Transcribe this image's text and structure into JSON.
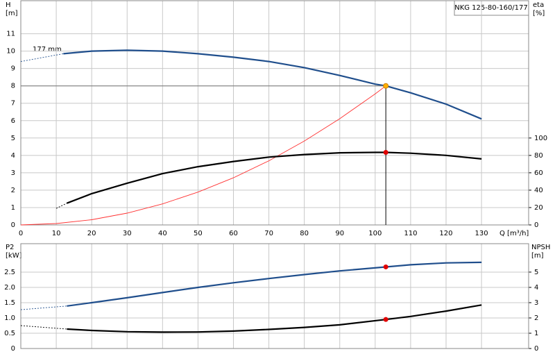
{
  "chart_data": [
    {
      "type": "line",
      "model": "NKG 125-80-160/177",
      "annotation": "177 mm",
      "ylabel": "H",
      "yunit": "[m]",
      "y2label": "eta",
      "y2unit": "[%]",
      "xlabel": "Q [m³/h]",
      "xlim": [
        0,
        143.3
      ],
      "xticks": [
        0,
        10,
        20,
        30,
        40,
        50,
        60,
        70,
        80,
        90,
        100,
        110,
        120,
        130
      ],
      "ylim": [
        0,
        12.9
      ],
      "yticks": [
        0,
        1,
        2,
        3,
        4,
        5,
        6,
        7,
        8,
        9,
        10,
        11
      ],
      "y2lim": [
        0,
        258
      ],
      "y2ticks": [
        0,
        20,
        40,
        60,
        80,
        100
      ],
      "grid": true,
      "series": [
        {
          "style": "dashed",
          "color": "#1f4e8c",
          "x": [
            0,
            12
          ],
          "values": [
            9.4,
            9.85
          ]
        },
        {
          "style": "solid",
          "color": "#1f4e8c",
          "x": [
            12,
            20,
            30,
            40,
            50,
            60,
            70,
            80,
            90,
            100,
            103,
            110,
            120,
            130
          ],
          "values": [
            9.85,
            10.0,
            10.05,
            10.0,
            9.85,
            9.65,
            9.4,
            9.05,
            8.6,
            8.1,
            8.0,
            7.6,
            6.95,
            6.1
          ]
        },
        {
          "style": "thin",
          "color": "#ff3030",
          "x": [
            0,
            10,
            20,
            30,
            40,
            50,
            60,
            70,
            80,
            90,
            100,
            103
          ],
          "values": [
            0,
            0.08,
            0.3,
            0.68,
            1.21,
            1.89,
            2.71,
            3.69,
            4.83,
            6.11,
            7.54,
            8.0
          ]
        },
        {
          "style": "dashed",
          "color": "#000000",
          "axis": "y2",
          "x": [
            10,
            13
          ],
          "values": [
            19,
            25
          ]
        },
        {
          "style": "solid",
          "color": "#000000",
          "axis": "y2",
          "x": [
            13,
            20,
            30,
            40,
            50,
            60,
            70,
            80,
            90,
            100,
            103,
            110,
            120,
            130
          ],
          "values": [
            25,
            36,
            48,
            59,
            67,
            73,
            78,
            81,
            83,
            83.5,
            83.5,
            82.5,
            80,
            76
          ]
        },
        {
          "style": "marker",
          "guides": true,
          "color": "#ffb000",
          "x": [
            103
          ],
          "values": [
            8.0
          ]
        },
        {
          "style": "marker",
          "color": "#e00000",
          "axis": "y2",
          "x": [
            103
          ],
          "values": [
            83.5
          ]
        }
      ]
    },
    {
      "type": "line",
      "ylabel": "P2",
      "yunit": "[kW]",
      "y2label": "NPSH",
      "y2unit": "[m]",
      "xlim": [
        0,
        143.3
      ],
      "ylim": [
        0,
        3.43
      ],
      "yticks": [
        0,
        0.5,
        {
          "value": 1,
          "label": "1.0"
        },
        1.5,
        {
          "value": 2,
          "label": "2.0"
        },
        2.5
      ],
      "y2lim": [
        0,
        6.86
      ],
      "y2ticks": [
        0,
        1,
        2,
        3,
        4,
        5
      ],
      "grid": true,
      "series": [
        {
          "style": "dashed",
          "color": "#1f4e8c",
          "x": [
            0,
            13
          ],
          "values": [
            1.27,
            1.39
          ]
        },
        {
          "style": "solid",
          "color": "#1f4e8c",
          "x": [
            13,
            20,
            30,
            40,
            50,
            60,
            70,
            80,
            90,
            103,
            110,
            120,
            130
          ],
          "values": [
            1.39,
            1.5,
            1.66,
            1.83,
            2.0,
            2.15,
            2.29,
            2.42,
            2.54,
            2.67,
            2.74,
            2.8,
            2.82
          ]
        },
        {
          "style": "dashed",
          "color": "#000000",
          "axis": "y2",
          "x": [
            0,
            13
          ],
          "values": [
            1.5,
            1.27
          ]
        },
        {
          "style": "solid",
          "color": "#000000",
          "axis": "y2",
          "x": [
            13,
            20,
            30,
            40,
            50,
            60,
            70,
            80,
            90,
            103,
            110,
            120,
            130
          ],
          "values": [
            1.27,
            1.18,
            1.1,
            1.07,
            1.08,
            1.14,
            1.25,
            1.38,
            1.55,
            1.9,
            2.1,
            2.45,
            2.85
          ]
        },
        {
          "style": "marker",
          "color": "#e00000",
          "x": [
            103
          ],
          "values": [
            2.67
          ]
        },
        {
          "style": "marker",
          "color": "#e00000",
          "axis": "y2",
          "x": [
            103
          ],
          "values": [
            1.9
          ]
        }
      ]
    }
  ]
}
